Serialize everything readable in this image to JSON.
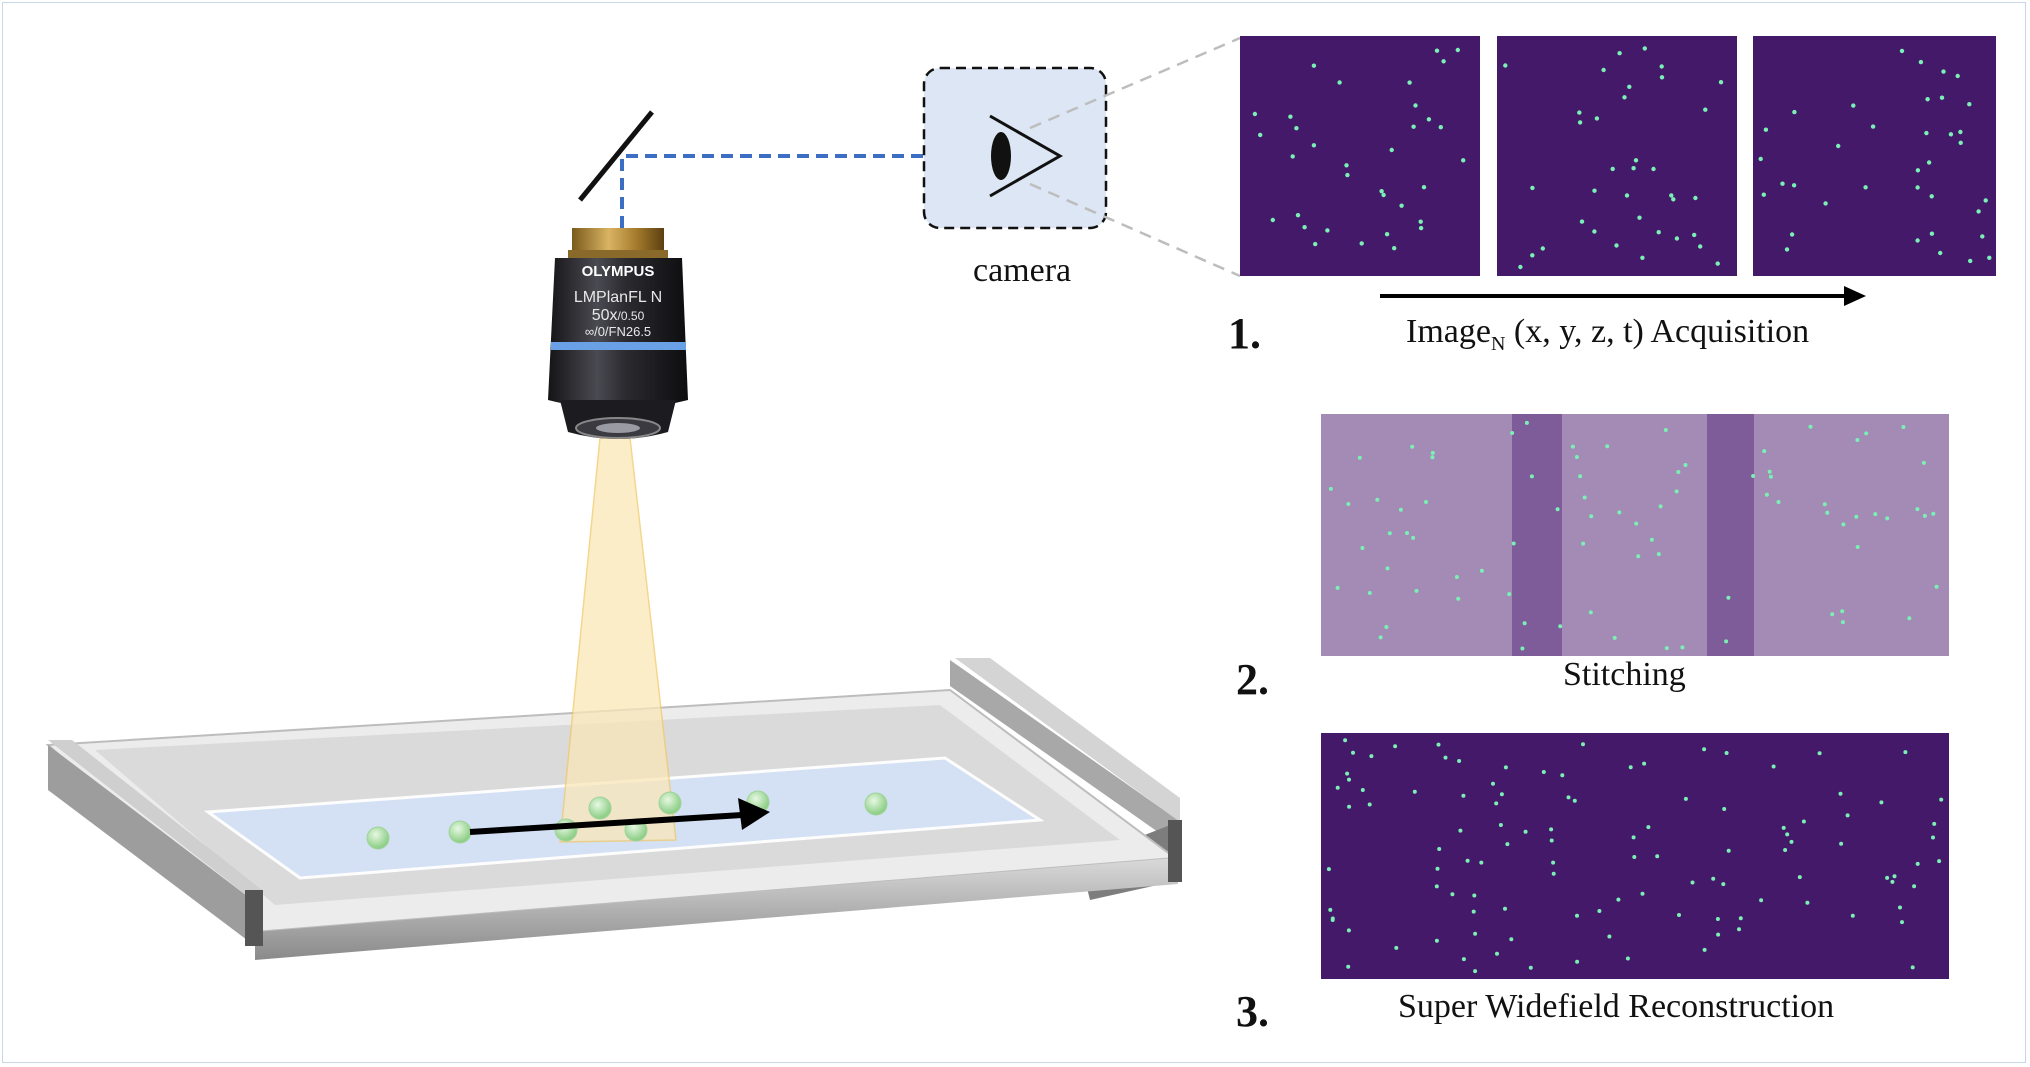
{
  "camera_label": "camera",
  "objective": {
    "brand": "OLYMPUS",
    "model": "LMPlanFL N",
    "magnification": "50x",
    "aperture": "/0.50",
    "spec": "∞/0/FN26.5"
  },
  "steps": [
    {
      "number": "1.",
      "caption_prefix": "Image",
      "caption_subscript": "N",
      "caption_suffix": " (x, y, z, t) Acquisition"
    },
    {
      "number": "2.",
      "caption": "Stitching"
    },
    {
      "number": "3.",
      "caption": "Super Widefield Reconstruction"
    }
  ],
  "colors": {
    "tile_background": "#44196a",
    "stitch_background": "#a48bb5",
    "stitch_overlap": "#7e5b99",
    "particle": "#7af0b5",
    "optical_path": "#3c6fc4",
    "camera_box": "#dce6f4",
    "bead": "#b4e6b0",
    "light_cone": "#fbe7b8"
  },
  "icons": {
    "mirror": "mirror-line",
    "camera": "eye-icon",
    "scan_direction": "arrow-right"
  }
}
